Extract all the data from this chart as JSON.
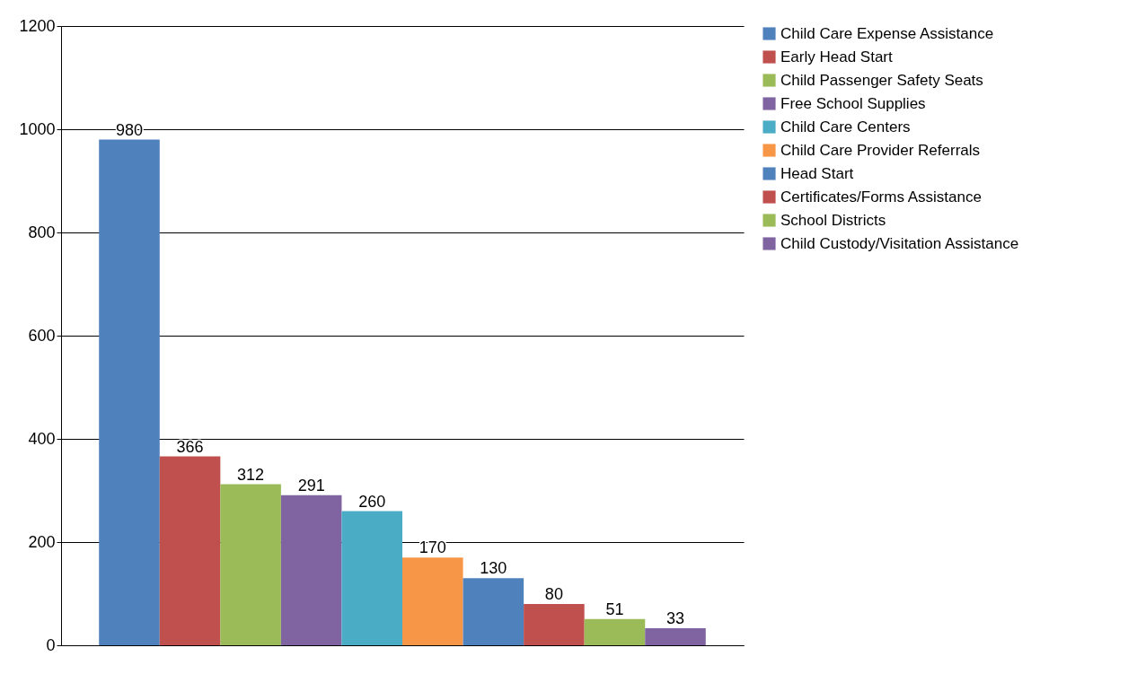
{
  "chart_data": {
    "type": "bar",
    "categories": [
      null
    ],
    "series": [
      {
        "name": "Child Care Expense Assistance",
        "color": "#4f81bd",
        "values": [
          980
        ]
      },
      {
        "name": "Early Head Start",
        "color": "#c0504d",
        "values": [
          366
        ]
      },
      {
        "name": "Child Passenger Safety Seats",
        "color": "#9bbb59",
        "values": [
          312
        ]
      },
      {
        "name": "Free School Supplies",
        "color": "#8064a2",
        "values": [
          291
        ]
      },
      {
        "name": "Child Care Centers",
        "color": "#4bacc6",
        "values": [
          260
        ]
      },
      {
        "name": "Child Care Provider Referrals",
        "color": "#f79646",
        "values": [
          170
        ]
      },
      {
        "name": "Head Start",
        "color": "#4f81bd",
        "values": [
          130
        ]
      },
      {
        "name": "Certificates/Forms Assistance",
        "color": "#c0504d",
        "values": [
          80
        ]
      },
      {
        "name": "School Districts",
        "color": "#9bbb59",
        "values": [
          51
        ]
      },
      {
        "name": "Child Custody/Visitation Assistance",
        "color": "#8064a2",
        "values": [
          33
        ]
      }
    ],
    "ylim": [
      0,
      1200
    ],
    "yticks": [
      0,
      200,
      400,
      600,
      800,
      1000,
      1200
    ],
    "grid": "y",
    "legend": "right",
    "data_labels": true,
    "tick_labels": "y"
  }
}
